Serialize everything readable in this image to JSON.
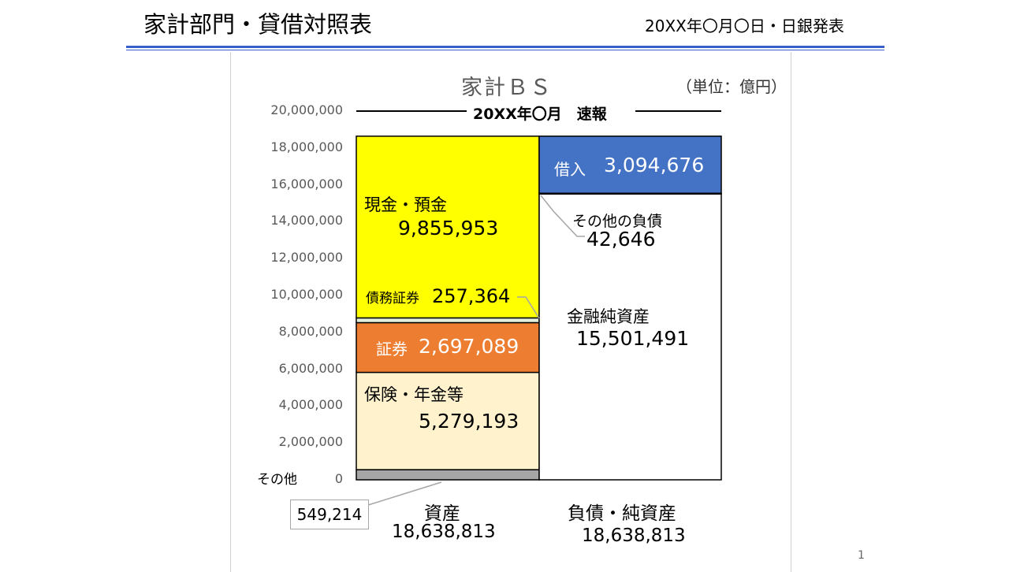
{
  "header": {
    "title": "家計部門・貸借対照表",
    "date": "20XX年〇月〇日・日銀発表"
  },
  "slide_number": "1",
  "chart_data": {
    "type": "bar",
    "title": "家計ＢＳ",
    "unit": "（単位：億円）",
    "subtitle": "20XX年〇月　速報",
    "y_ticks": [
      "20,000,000",
      "18,000,000",
      "16,000,000",
      "14,000,000",
      "12,000,000",
      "10,000,000",
      "8,000,000",
      "6,000,000",
      "4,000,000",
      "2,000,000",
      "0"
    ],
    "ylim": [
      0,
      20000000
    ],
    "categories": [
      "資産",
      "負債・純資産"
    ],
    "totals": [
      "18,638,813",
      "18,638,813"
    ],
    "assets": [
      {
        "name": "その他",
        "value": 549214,
        "value_label": "549,214",
        "color": "#a6a6a6"
      },
      {
        "name": "保険・年金等",
        "value": 5279193,
        "value_label": "5,279,193",
        "color": "#fff2cc"
      },
      {
        "name": "証券",
        "value": 2697089,
        "value_label": "2,697,089",
        "color": "#ed7d31"
      },
      {
        "name": "債務証券",
        "value": 257364,
        "value_label": "257,364",
        "color": "#e2efda"
      },
      {
        "name": "現金・預金",
        "value": 9855953,
        "value_label": "9,855,953",
        "color": "#ffff00"
      }
    ],
    "liabilities": [
      {
        "name": "金融純資産",
        "value": 15501491,
        "value_label": "15,501,491",
        "color": "#ffffff"
      },
      {
        "name": "その他の負債",
        "value": 42646,
        "value_label": "42,646",
        "color": "#ffffff"
      },
      {
        "name": "借入",
        "value": 3094676,
        "value_label": "3,094,676",
        "color": "#4472c4"
      }
    ]
  }
}
